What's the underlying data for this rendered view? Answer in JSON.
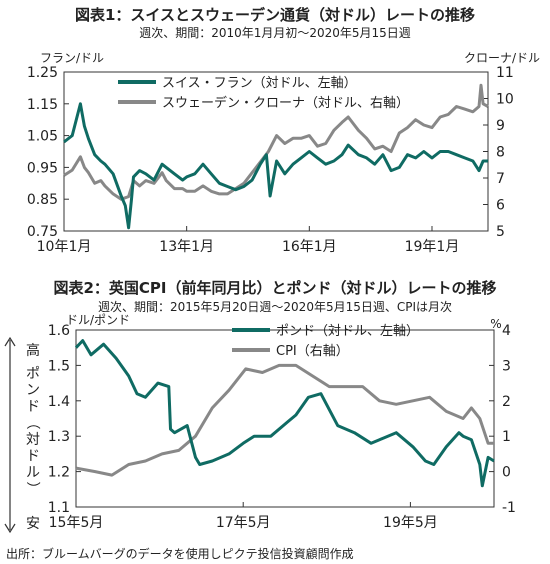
{
  "figure1": {
    "title": "図表1：スイスとスウェーデン通貨（対ドル）レートの推移",
    "subtitle": "週次、期間：2010年1月月初～2020年5月15日週",
    "chart_data": {
      "type": "line",
      "ylabel_left": "フラン/ドル",
      "ylabel_right": "クローナ/ドル",
      "ylim_left": [
        0.75,
        1.25
      ],
      "ylim_right": [
        5,
        11
      ],
      "yticks_left": [
        "0.75",
        "0.85",
        "0.95",
        "1.05",
        "1.15",
        "1.25"
      ],
      "yticks_right": [
        "5",
        "6",
        "7",
        "8",
        "9",
        "10",
        "11"
      ],
      "xticks": [
        "10年1月",
        "13年1月",
        "16年1月",
        "19年1月"
      ],
      "xtick_pos": [
        2010.0,
        2013.0,
        2016.0,
        2019.0
      ],
      "xlim": [
        2010.0,
        2020.37
      ],
      "grid": false,
      "legend_position": "top-left",
      "series": [
        {
          "name": "スイス・フラン（対ドル、左軸）",
          "axis": "left",
          "color": "#0f6b63",
          "x": [
            2010.0,
            2010.2,
            2010.4,
            2010.5,
            2010.6,
            2010.75,
            2010.9,
            2011.0,
            2011.2,
            2011.4,
            2011.5,
            2011.58,
            2011.65,
            2011.7,
            2011.85,
            2012.0,
            2012.2,
            2012.4,
            2012.5,
            2012.7,
            2012.9,
            2013.0,
            2013.2,
            2013.4,
            2013.6,
            2013.8,
            2014.0,
            2014.2,
            2014.4,
            2014.6,
            2014.8,
            2014.95,
            2015.04,
            2015.2,
            2015.4,
            2015.6,
            2015.8,
            2016.0,
            2016.2,
            2016.4,
            2016.6,
            2016.8,
            2016.95,
            2017.2,
            2017.4,
            2017.6,
            2017.8,
            2018.0,
            2018.2,
            2018.4,
            2018.6,
            2018.8,
            2019.0,
            2019.2,
            2019.4,
            2019.6,
            2019.8,
            2020.0,
            2020.15,
            2020.25,
            2020.37
          ],
          "values": [
            1.03,
            1.05,
            1.15,
            1.08,
            1.04,
            0.99,
            0.97,
            0.96,
            0.93,
            0.86,
            0.83,
            0.76,
            0.85,
            0.92,
            0.94,
            0.93,
            0.91,
            0.96,
            0.95,
            0.93,
            0.91,
            0.92,
            0.93,
            0.96,
            0.93,
            0.9,
            0.89,
            0.88,
            0.89,
            0.91,
            0.96,
            0.99,
            0.86,
            0.97,
            0.93,
            0.96,
            0.98,
            1.0,
            0.98,
            0.96,
            0.97,
            0.99,
            1.02,
            0.99,
            0.98,
            0.96,
            0.99,
            0.94,
            0.95,
            0.99,
            0.98,
            1.0,
            0.98,
            1.0,
            1.0,
            0.99,
            0.98,
            0.97,
            0.94,
            0.97,
            0.97
          ]
        },
        {
          "name": "スウェーデン・クローナ（対ドル、右軸）",
          "axis": "right",
          "color": "#888888",
          "x": [
            2010.0,
            2010.2,
            2010.4,
            2010.5,
            2010.6,
            2010.75,
            2010.9,
            2011.0,
            2011.2,
            2011.4,
            2011.58,
            2011.7,
            2011.85,
            2012.0,
            2012.2,
            2012.4,
            2012.5,
            2012.7,
            2012.9,
            2013.0,
            2013.2,
            2013.4,
            2013.6,
            2013.8,
            2014.0,
            2014.2,
            2014.4,
            2014.6,
            2014.8,
            2015.0,
            2015.2,
            2015.4,
            2015.6,
            2015.8,
            2016.0,
            2016.2,
            2016.4,
            2016.6,
            2016.8,
            2016.95,
            2017.2,
            2017.4,
            2017.6,
            2017.8,
            2018.0,
            2018.2,
            2018.4,
            2018.6,
            2018.8,
            2019.0,
            2019.2,
            2019.4,
            2019.6,
            2019.8,
            2020.0,
            2020.15,
            2020.2,
            2020.25,
            2020.37
          ],
          "values": [
            7.1,
            7.3,
            7.8,
            7.4,
            7.2,
            6.8,
            6.9,
            6.7,
            6.4,
            6.2,
            6.3,
            6.9,
            6.7,
            6.9,
            6.8,
            7.2,
            6.9,
            6.6,
            6.6,
            6.5,
            6.5,
            6.7,
            6.5,
            6.4,
            6.4,
            6.6,
            6.8,
            7.2,
            7.6,
            8.0,
            8.6,
            8.3,
            8.5,
            8.5,
            8.6,
            8.2,
            8.3,
            8.8,
            9.1,
            9.3,
            8.8,
            8.5,
            8.1,
            8.2,
            8.0,
            8.7,
            8.9,
            9.2,
            9.0,
            8.9,
            9.3,
            9.4,
            9.7,
            9.6,
            9.5,
            9.7,
            10.5,
            9.8,
            9.7
          ]
        }
      ]
    }
  },
  "figure2": {
    "title": "図表2：英国CPI（前年同月比）とポンド（対ドル）レートの推移",
    "subtitle": "週次、期間：2015年5月20日週～2020年5月15日週、CPIは月次",
    "chart_data": {
      "type": "line",
      "ylabel_left": "ドル/ポンド",
      "ylabel_right": "%",
      "ylim_left": [
        1.1,
        1.6
      ],
      "ylim_right": [
        -1,
        4
      ],
      "yticks_left": [
        "1.1",
        "1.2",
        "1.3",
        "1.4",
        "1.5",
        "1.6"
      ],
      "yticks_right": [
        "-1",
        "0",
        "1",
        "2",
        "3",
        "4"
      ],
      "xticks": [
        "15年5月",
        "17年5月",
        "19年5月"
      ],
      "xtick_pos": [
        2015.37,
        2017.37,
        2019.37
      ],
      "xlim": [
        2015.37,
        2020.37
      ],
      "side_label_top": "高",
      "side_label_middle": "ポンド（対ドル）",
      "side_label_bottom": "安",
      "grid": false,
      "legend_position": "top-center",
      "series": [
        {
          "name": "ポンド（対ドル、左軸）",
          "axis": "left",
          "color": "#0f6b63",
          "x": [
            2015.37,
            2015.45,
            2015.55,
            2015.7,
            2015.85,
            2016.0,
            2016.1,
            2016.2,
            2016.35,
            2016.48,
            2016.5,
            2016.55,
            2016.7,
            2016.8,
            2016.85,
            2017.0,
            2017.2,
            2017.37,
            2017.5,
            2017.7,
            2017.9,
            2018.0,
            2018.15,
            2018.3,
            2018.5,
            2018.7,
            2018.9,
            2019.0,
            2019.2,
            2019.4,
            2019.55,
            2019.65,
            2019.8,
            2019.95,
            2020.0,
            2020.1,
            2020.2,
            2020.23,
            2020.3,
            2020.37
          ],
          "values": [
            1.55,
            1.57,
            1.53,
            1.56,
            1.52,
            1.47,
            1.42,
            1.41,
            1.45,
            1.44,
            1.32,
            1.31,
            1.33,
            1.24,
            1.22,
            1.23,
            1.25,
            1.28,
            1.3,
            1.3,
            1.34,
            1.36,
            1.41,
            1.42,
            1.33,
            1.31,
            1.28,
            1.29,
            1.31,
            1.27,
            1.23,
            1.22,
            1.27,
            1.31,
            1.3,
            1.29,
            1.22,
            1.16,
            1.24,
            1.23
          ]
        },
        {
          "name": "CPI（右軸）",
          "axis": "right",
          "color": "#888888",
          "x": [
            2015.37,
            2015.6,
            2015.8,
            2016.0,
            2016.2,
            2016.4,
            2016.6,
            2016.8,
            2017.0,
            2017.2,
            2017.4,
            2017.6,
            2017.8,
            2018.0,
            2018.2,
            2018.4,
            2018.6,
            2018.8,
            2019.0,
            2019.2,
            2019.4,
            2019.6,
            2019.8,
            2020.0,
            2020.1,
            2020.2,
            2020.3,
            2020.37
          ],
          "values": [
            0.1,
            0.0,
            -0.1,
            0.2,
            0.3,
            0.5,
            0.6,
            1.0,
            1.8,
            2.3,
            2.9,
            2.8,
            3.0,
            3.0,
            2.7,
            2.4,
            2.4,
            2.4,
            2.0,
            1.9,
            2.0,
            2.1,
            1.7,
            1.5,
            1.8,
            1.5,
            0.8,
            0.8
          ]
        }
      ]
    }
  },
  "source": "出所：ブルームバーグのデータを使用しピクテ投信投資顧問作成"
}
